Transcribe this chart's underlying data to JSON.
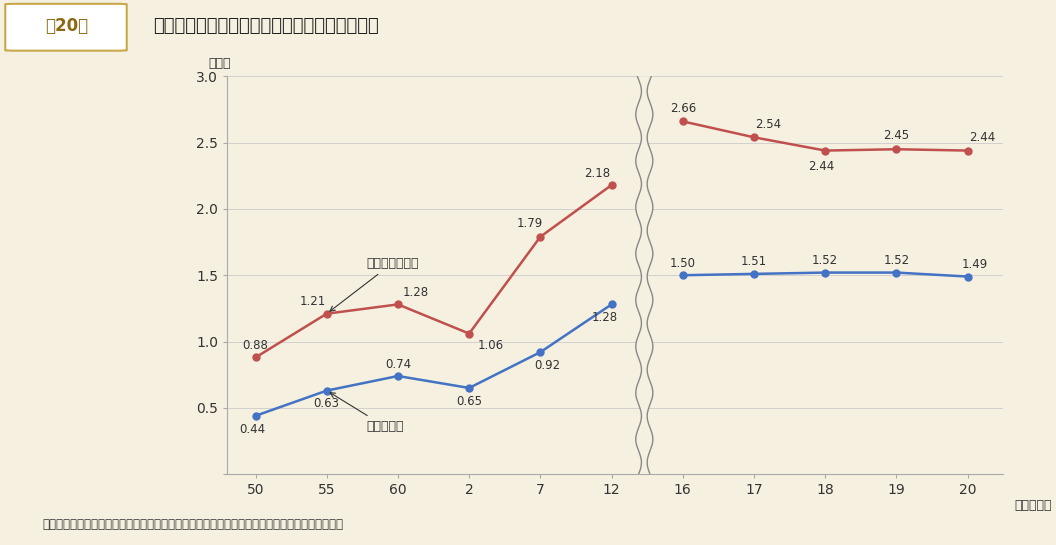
{
  "fig_label": "第20図",
  "fig_title": "地方債現在高の歳入総額等に対する割合の推移",
  "ylabel": "（倍）",
  "xlabel_suffix": "（年度末）",
  "note": "（注）　地方債現在高は、特定資金公共事業債及び特定資金公共投資事業債を除いた額である。",
  "background_color": "#f5f0e0",
  "header_border_color": "#c8a84b",
  "header_text_color": "#8b6a14",
  "plot_bg_color": "#f5f0e0",
  "x_ticks_labels": [
    "50",
    "55",
    "60",
    "2",
    "7",
    "12",
    "16",
    "17",
    "18",
    "19",
    "20"
  ],
  "x_positions": [
    0,
    1,
    2,
    3,
    4,
    5,
    6,
    7,
    8,
    9,
    10
  ],
  "blue_series_label": "対歳入総額",
  "blue_values": [
    0.44,
    0.63,
    0.74,
    0.65,
    0.92,
    1.28,
    1.5,
    1.51,
    1.52,
    1.52,
    1.49
  ],
  "blue_color": "#4472c4",
  "red_series_label": "対一般財源総額",
  "red_values": [
    0.88,
    1.21,
    1.28,
    1.06,
    1.79,
    2.18,
    2.66,
    2.54,
    2.44,
    2.45,
    2.44
  ],
  "red_color": "#c0504d",
  "ylim": [
    0,
    3.0
  ],
  "yticks": [
    0,
    0.5,
    1.0,
    1.5,
    2.0,
    2.5,
    3.0
  ]
}
